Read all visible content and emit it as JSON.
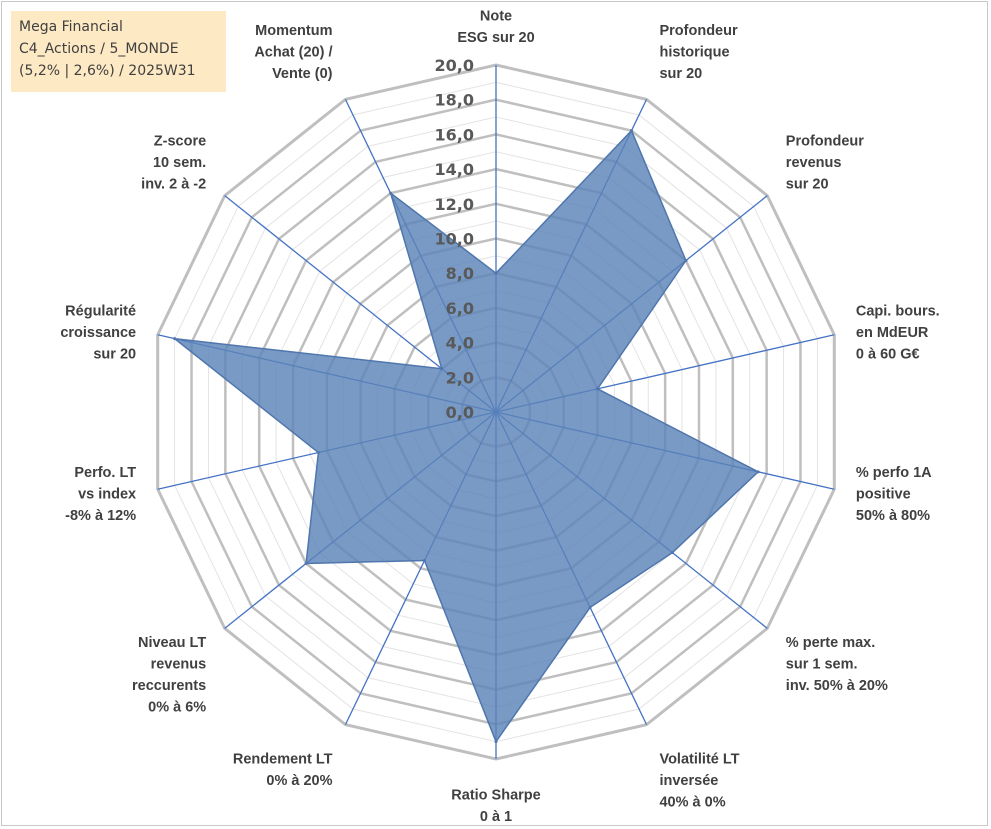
{
  "info_box": {
    "lines": [
      "Mega Financial",
      "C4_Actions / 5_MONDE",
      "(5,2% | 2,6%) / 2025W31"
    ]
  },
  "chart_data": {
    "type": "radar",
    "title": "",
    "categories": [
      [
        "Note",
        "ESG sur 20"
      ],
      [
        "Profondeur",
        "historique",
        "sur 20"
      ],
      [
        "Profondeur",
        "revenus",
        "sur 20"
      ],
      [
        "Capi. bours.",
        "en MdEUR",
        "0 à 60 G€"
      ],
      [
        "% perfo 1A",
        "positive",
        "50% à 80%"
      ],
      [
        "% perte max.",
        "sur 1 sem.",
        "inv. 50% à 20%"
      ],
      [
        "Volatilité LT",
        "inversée",
        "40% à 0%"
      ],
      [
        "Ratio Sharpe",
        "0 à 1"
      ],
      [
        "Rendement LT",
        "0% à 20%"
      ],
      [
        "Niveau LT",
        "revenus",
        "reccurents",
        "0% à 6%"
      ],
      [
        "Perfo. LT",
        "vs index",
        "-8% à 12%"
      ],
      [
        "Régularité",
        "croissance",
        "sur 20"
      ],
      [
        "Z-score",
        "10 sem.",
        "inv. 2 à -2"
      ],
      [
        "Momentum",
        "Achat (20) /",
        "Vente (0)"
      ]
    ],
    "series": [
      {
        "values": [
          8.0,
          18.0,
          14.0,
          6.0,
          15.5,
          13.0,
          12.5,
          19.0,
          9.5,
          14.0,
          10.5,
          19.0,
          4.0,
          14.0
        ]
      }
    ],
    "r_range": [
      0,
      20
    ],
    "r_ticks": [
      "0,0",
      "2,0",
      "4,0",
      "6,0",
      "8,0",
      "10,0",
      "12,0",
      "14,0",
      "16,0",
      "18,0",
      "20,0"
    ],
    "grid": true,
    "legend": "none",
    "colors": {
      "fill": "#5b84b8",
      "stroke": "#4f76ad",
      "grid": "#bfbfbf",
      "spoke": "#4472c4"
    }
  }
}
